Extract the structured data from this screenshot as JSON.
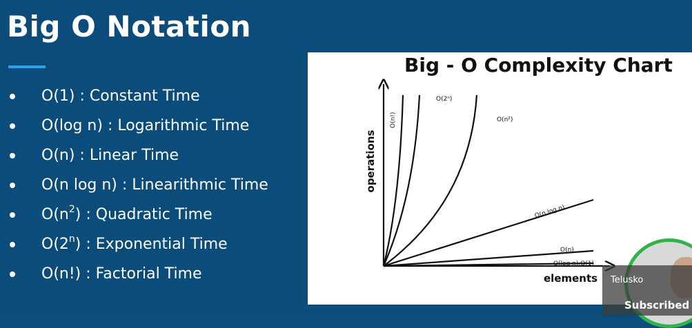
{
  "slide": {
    "title": "Big O Notation",
    "bullets": [
      {
        "main": "O(1) : Constant Time"
      },
      {
        "main": "O(log n) : Logarithmic Time"
      },
      {
        "main": "O(n) : Linear Time"
      },
      {
        "main": "O(n log n) : Linearithmic Time"
      },
      {
        "pre": "O(n",
        "sup": "2",
        "post": ") : Quadratic Time"
      },
      {
        "pre": "O(2",
        "sup": "n",
        "post": ") : Exponential Time"
      },
      {
        "main": "O(n!) : Factorial Time"
      }
    ],
    "accent_color": "#2aa3ea",
    "background_color": "#0b4c7a"
  },
  "chart": {
    "title": "Big - O Complexity Chart",
    "xlabel": "elements",
    "ylabel": "operations",
    "curve_labels": {
      "factorial": "O(n!)",
      "exponential": "O(2ⁿ)",
      "quadratic": "O(n²)",
      "nlogn": "O(n log n)",
      "linear": "O(n)",
      "log_const": "O(log n),O(1)"
    }
  },
  "overlay": {
    "channel": "Telusko",
    "status": "Subscribed",
    "ring_color": "#2fb34a"
  }
}
